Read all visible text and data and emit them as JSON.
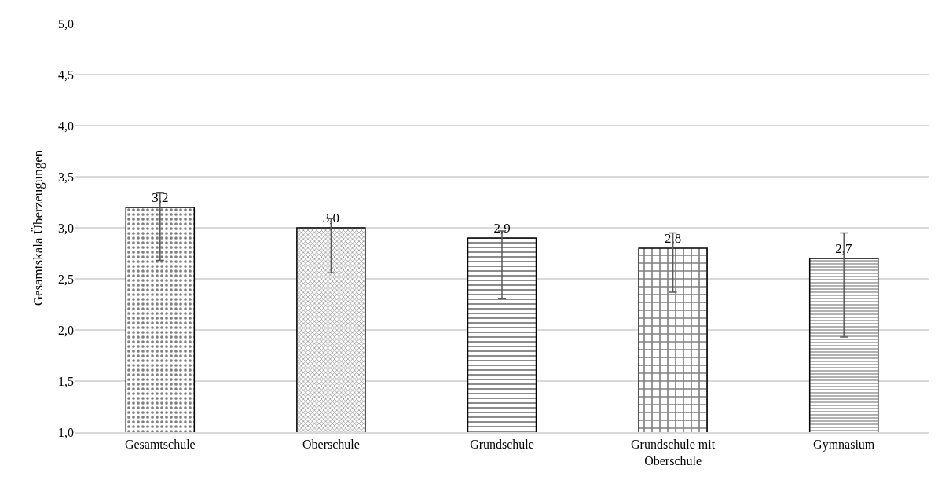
{
  "chart_data": {
    "type": "bar",
    "ylabel": "Gesamtskala Überzeugungen",
    "categories": [
      "Gesamtschule",
      "Oberschule",
      "Grundschule",
      "Grundschule mit Oberschule",
      "Gymnasium"
    ],
    "values": [
      3.2,
      3.0,
      2.9,
      2.8,
      2.7
    ],
    "errors": [
      [
        2.68,
        3.34
      ],
      [
        2.56,
        3.09
      ],
      [
        2.31,
        2.97
      ],
      [
        2.37,
        2.95
      ],
      [
        1.93,
        2.95
      ]
    ],
    "value_labels": [
      "3,2",
      "3,0",
      "2,9",
      "2,8",
      "2,7"
    ],
    "ylim": [
      1.0,
      5.0
    ],
    "yticks": [
      {
        "value": 1.0,
        "label": "1,0"
      },
      {
        "value": 1.5,
        "label": "1,5"
      },
      {
        "value": 2.0,
        "label": "2,0"
      },
      {
        "value": 2.5,
        "label": "2,5"
      },
      {
        "value": 3.0,
        "label": "3,0"
      },
      {
        "value": 3.5,
        "label": "3,5"
      },
      {
        "value": 4.0,
        "label": "4,0"
      },
      {
        "value": 4.5,
        "label": "4,5"
      },
      {
        "value": 5.0,
        "label": "5,0"
      }
    ],
    "grid": "y"
  }
}
